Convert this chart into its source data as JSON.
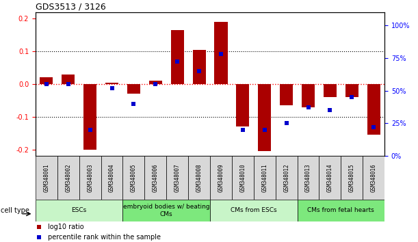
{
  "title": "GDS3513 / 3126",
  "samples": [
    "GSM348001",
    "GSM348002",
    "GSM348003",
    "GSM348004",
    "GSM348005",
    "GSM348006",
    "GSM348007",
    "GSM348008",
    "GSM348009",
    "GSM348010",
    "GSM348011",
    "GSM348012",
    "GSM348013",
    "GSM348014",
    "GSM348015",
    "GSM348016"
  ],
  "log10_ratio": [
    0.02,
    0.03,
    -0.2,
    0.005,
    -0.03,
    0.01,
    0.165,
    0.105,
    0.19,
    -0.13,
    -0.205,
    -0.065,
    -0.07,
    -0.04,
    -0.04,
    -0.155
  ],
  "percentile_rank": [
    55,
    55,
    20,
    52,
    40,
    55,
    72,
    65,
    78,
    20,
    20,
    25,
    37,
    35,
    45,
    22
  ],
  "cell_type_groups": [
    {
      "label": "ESCs",
      "start": 0,
      "end": 3,
      "color": "#c8f5c8"
    },
    {
      "label": "embryoid bodies w/ beating\nCMs",
      "start": 4,
      "end": 7,
      "color": "#7de87d"
    },
    {
      "label": "CMs from ESCs",
      "start": 8,
      "end": 11,
      "color": "#c8f5c8"
    },
    {
      "label": "CMs from fetal hearts",
      "start": 12,
      "end": 15,
      "color": "#7de87d"
    }
  ],
  "ylim": [
    -0.22,
    0.22
  ],
  "y2lim": [
    0,
    110
  ],
  "bar_color": "#aa0000",
  "dot_color": "#0000cc",
  "dot_size": 4,
  "title_fontsize": 9,
  "tick_fontsize": 7,
  "background_color": "#ffffff",
  "plot_bg_color": "#ffffff"
}
